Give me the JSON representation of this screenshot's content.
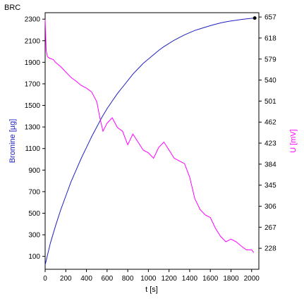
{
  "chart_data": {
    "type": "line",
    "title": "BRC",
    "xlabel": "t [s]",
    "ylabel_left": "Bromine [µg]",
    "ylabel_right": "U [mV]",
    "xlim": [
      0,
      2070
    ],
    "ylim_left": [
      -20,
      2360
    ],
    "ylim_right": [
      189,
      665
    ],
    "x_ticks": [
      0,
      200,
      400,
      600,
      800,
      1000,
      1200,
      1400,
      1600,
      1800,
      2000
    ],
    "x_tick_labels": [
      "0",
      "200",
      "400",
      "600",
      "800",
      "1000",
      "1200",
      "1400",
      "1600",
      "1800",
      "2000"
    ],
    "y_left_ticks": [
      100,
      300,
      500,
      700,
      900,
      1100,
      1300,
      1500,
      1700,
      1900,
      2100,
      2300
    ],
    "y_left_tick_labels": [
      "100",
      "300",
      "500",
      "700",
      "900",
      "1100",
      "1300",
      "1500",
      "1700",
      "1900",
      "2100",
      "2300"
    ],
    "y_right_ticks": [
      228,
      267,
      306,
      345,
      384,
      423,
      462,
      501,
      540,
      579,
      618,
      657
    ],
    "y_right_tick_labels": [
      "228",
      "267",
      "306",
      "345",
      "384",
      "423",
      "462",
      "501",
      "540",
      "579",
      "618",
      "657"
    ],
    "grid": false,
    "legend": "none",
    "series": [
      {
        "axis": "left",
        "color": "#2020c0",
        "x": [
          0,
          50,
          100,
          150,
          200,
          250,
          300,
          350,
          400,
          450,
          500,
          550,
          600,
          650,
          700,
          750,
          800,
          850,
          900,
          950,
          1000,
          1050,
          1100,
          1150,
          1200,
          1250,
          1300,
          1350,
          1400,
          1450,
          1500,
          1550,
          1600,
          1650,
          1700,
          1750,
          1800,
          1850,
          1900,
          1950,
          2000,
          2030
        ],
        "y": [
          20,
          220,
          380,
          530,
          660,
          790,
          900,
          1010,
          1110,
          1210,
          1300,
          1390,
          1470,
          1540,
          1610,
          1670,
          1730,
          1790,
          1840,
          1890,
          1930,
          1970,
          2010,
          2045,
          2075,
          2105,
          2130,
          2155,
          2175,
          2195,
          2210,
          2225,
          2240,
          2253,
          2265,
          2275,
          2283,
          2290,
          2297,
          2303,
          2308,
          2310
        ]
      },
      {
        "axis": "right",
        "color": "#ff00ff",
        "x": [
          0,
          10,
          20,
          30,
          50,
          80,
          100,
          150,
          200,
          250,
          300,
          350,
          400,
          450,
          500,
          530,
          560,
          600,
          650,
          700,
          750,
          800,
          850,
          900,
          950,
          1000,
          1050,
          1100,
          1150,
          1200,
          1250,
          1300,
          1350,
          1400,
          1450,
          1500,
          1550,
          1600,
          1650,
          1700,
          1750,
          1800,
          1850,
          1900,
          1950,
          2000,
          2020
        ],
        "y": [
          652,
          595,
          585,
          582,
          580,
          578,
          573,
          565,
          555,
          545,
          538,
          530,
          525,
          518,
          500,
          470,
          445,
          460,
          470,
          452,
          445,
          420,
          440,
          425,
          410,
          405,
          395,
          415,
          425,
          410,
          395,
          390,
          385,
          360,
          320,
          300,
          290,
          285,
          265,
          250,
          240,
          245,
          240,
          232,
          225,
          225,
          220
        ]
      }
    ],
    "end_marker": {
      "x": 2030,
      "y": 2310
    }
  }
}
